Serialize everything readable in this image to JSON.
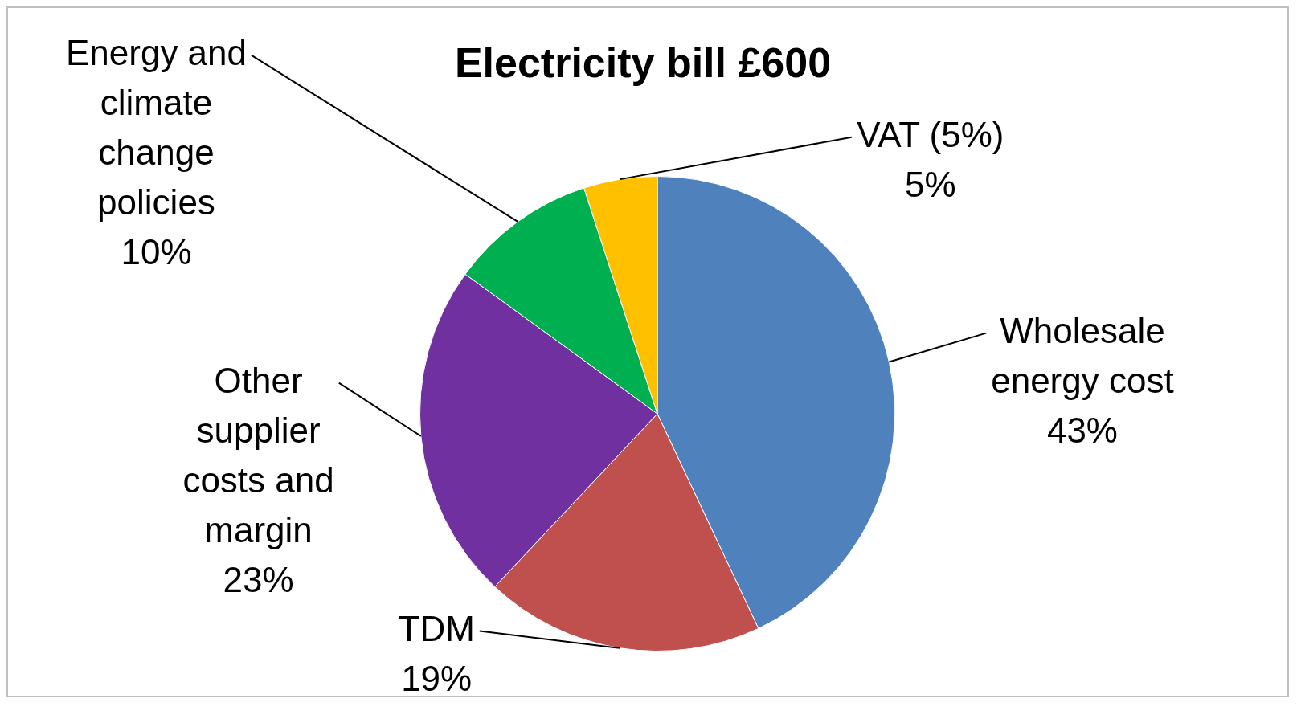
{
  "chart_data": {
    "type": "pie",
    "title": "Electricity bill £600",
    "categories": [
      "Wholesale energy cost",
      "TDM",
      "Other supplier costs and margin",
      "Energy and climate change policies",
      "VAT (5%)"
    ],
    "values": [
      43,
      19,
      23,
      10,
      5
    ],
    "value_labels": [
      "43%",
      "19%",
      "23%",
      "10%",
      "5%"
    ],
    "colors": [
      "#4f81bd",
      "#c0504d",
      "#7030a0",
      "#00b050",
      "#ffc000"
    ],
    "legend": false
  }
}
